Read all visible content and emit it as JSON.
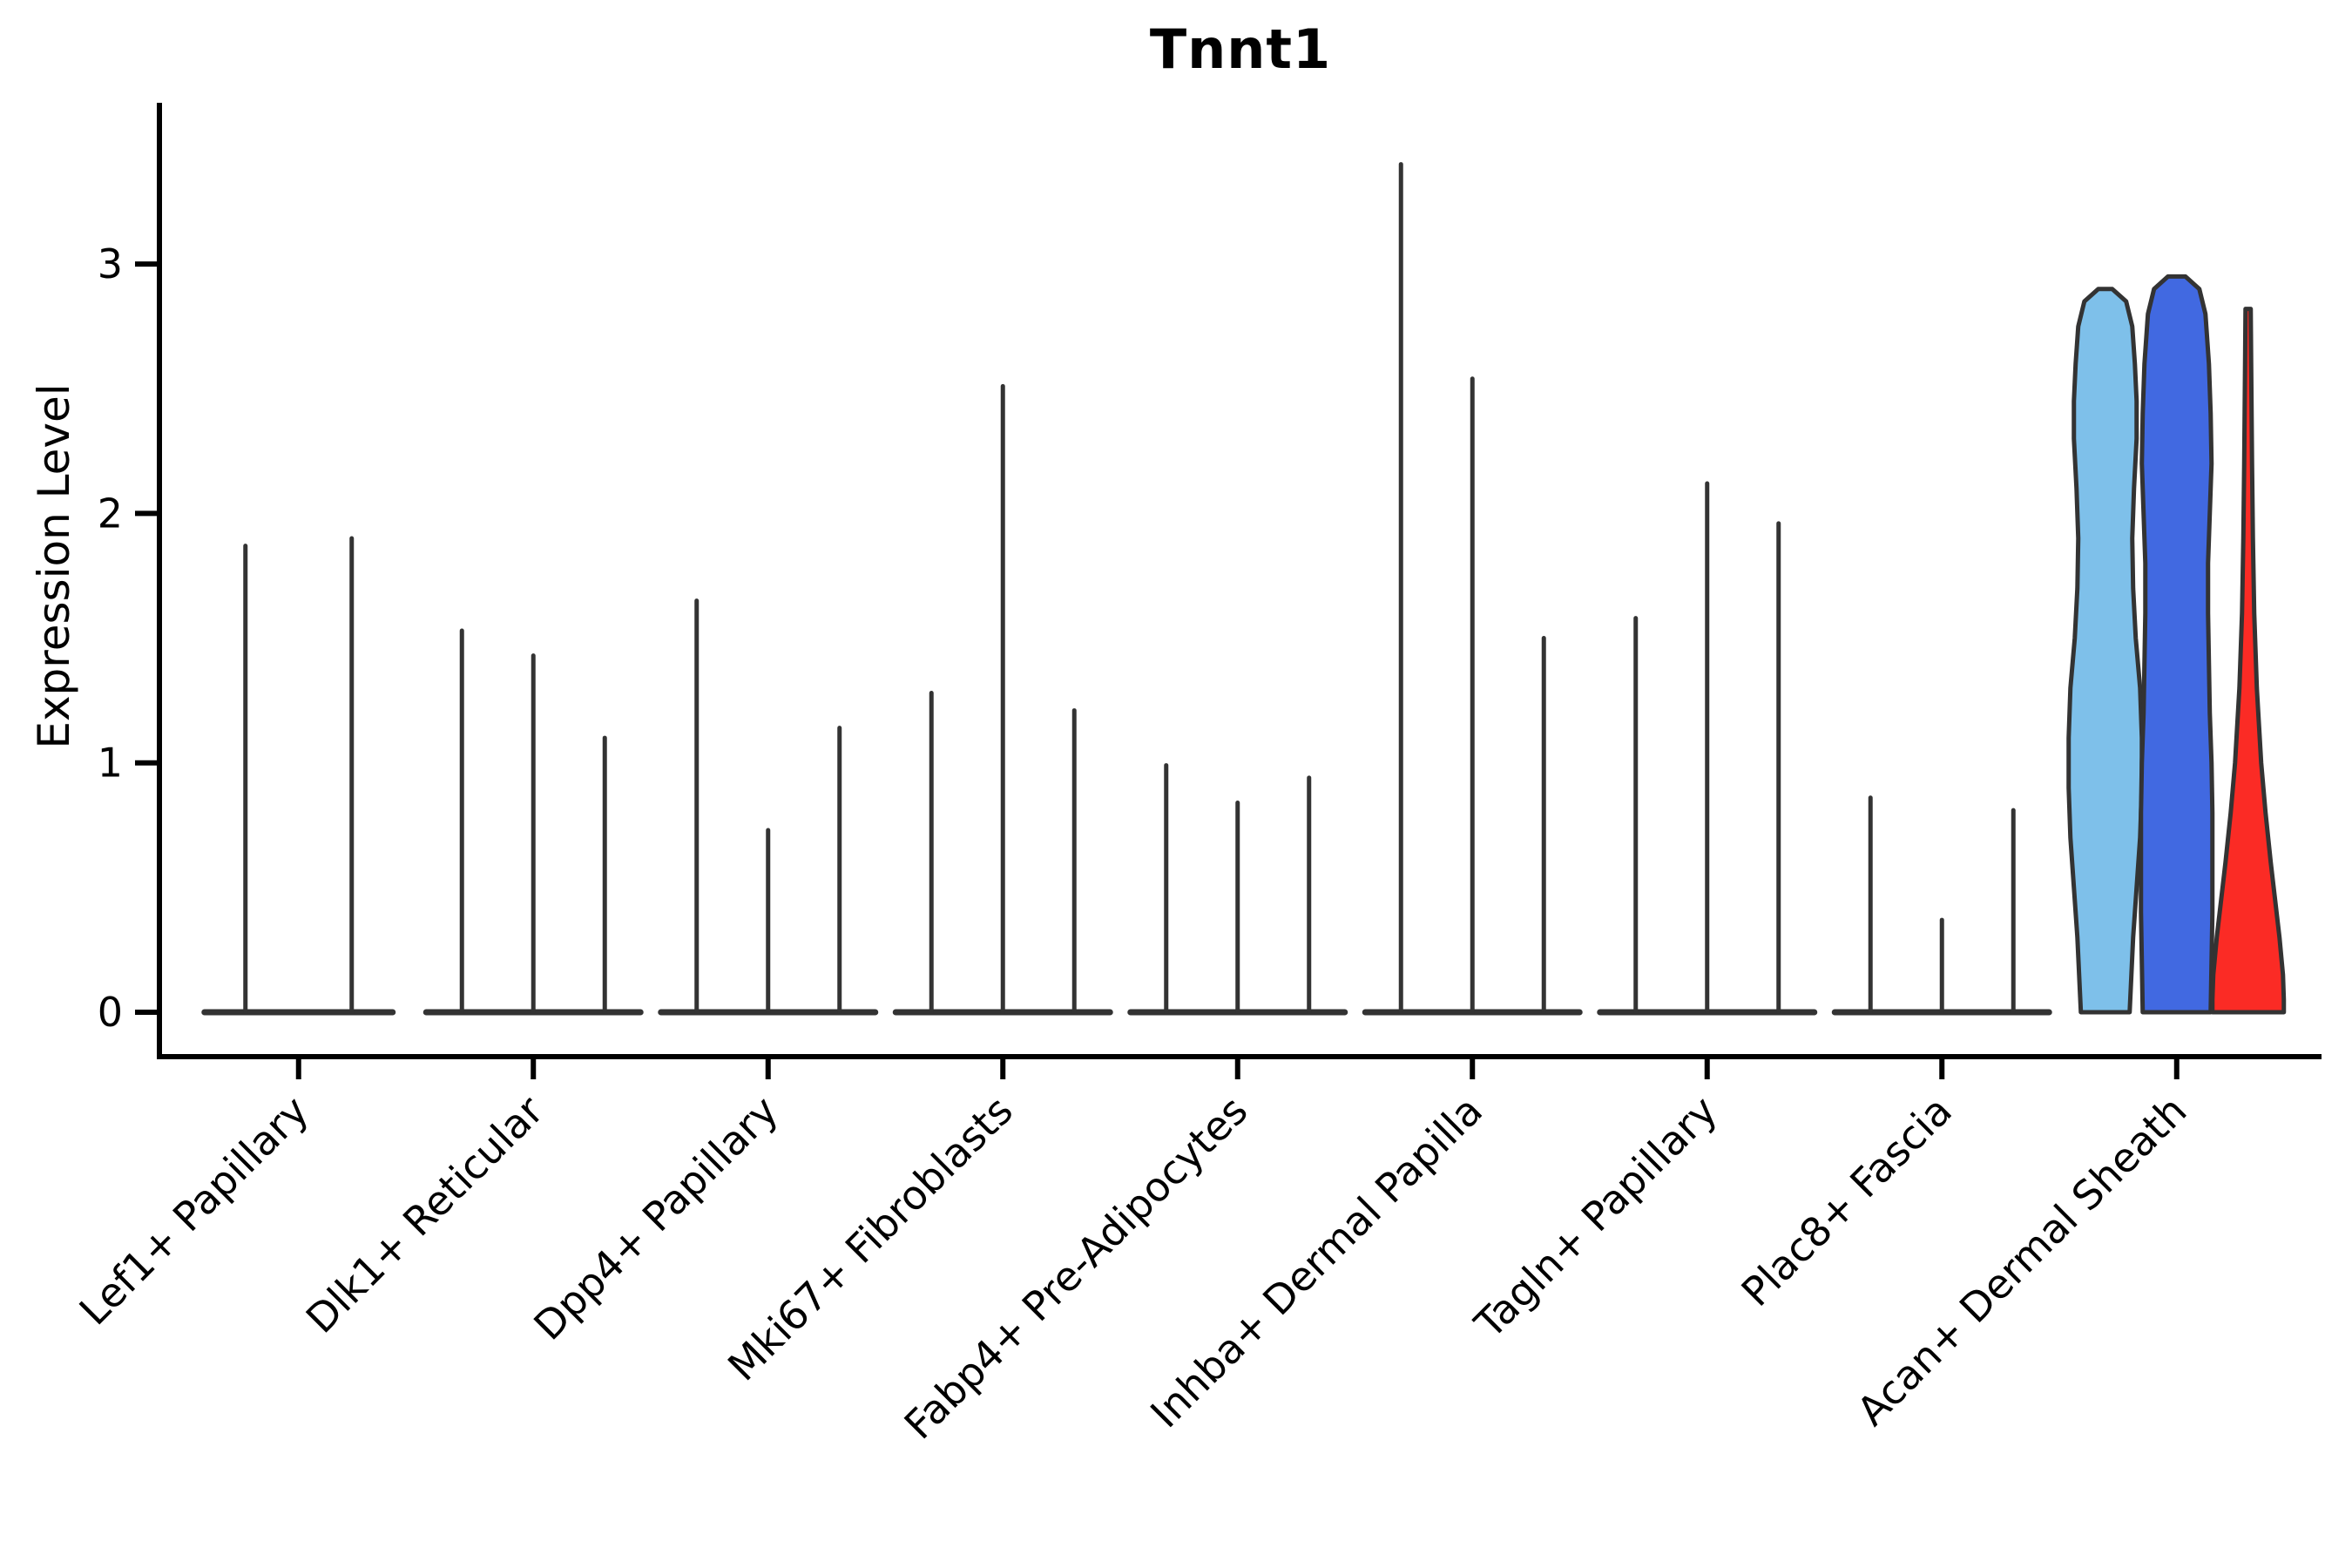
{
  "title": "Tnnt1",
  "y_axis": {
    "label": "Expression Level",
    "tick_labels": [
      "0",
      "1",
      "2",
      "3"
    ]
  },
  "colors": {
    "axis": "#000000",
    "spike": "#333333",
    "violin_outline": "#333333",
    "light_blue": "#7EC0EA",
    "blue": "#4169E1",
    "red": "#FB2B25",
    "background": "#ffffff"
  },
  "chart_data": {
    "type": "violin",
    "title": "Tnnt1",
    "xlabel": "",
    "ylabel": "Expression Level",
    "ylim": [
      0,
      3.65
    ],
    "yticks": [
      0,
      1,
      2,
      3
    ],
    "grid": false,
    "legend_position": "none",
    "categories": [
      "Lef1+ Papillary",
      "Dlk1+ Reticular",
      "Dpp4+ Papillary",
      "Mki67+ Fibroblasts",
      "Fabp4+ Pre-Adipocytes",
      "Inhba+ Dermal Papilla",
      "Tagln+ Papillary",
      "Plac8+ Fascia",
      "Acan+ Dermal Sheath"
    ],
    "groups": [
      {
        "category": "Lef1+ Papillary",
        "violins": [
          {
            "kind": "spike",
            "offset": -61,
            "max": 1.87
          },
          {
            "kind": "spike",
            "offset": 61,
            "max": 1.9
          }
        ]
      },
      {
        "category": "Dlk1+ Reticular",
        "violins": [
          {
            "kind": "spike",
            "offset": -82,
            "max": 1.53
          },
          {
            "kind": "spike",
            "offset": 0,
            "max": 1.43
          },
          {
            "kind": "spike",
            "offset": 82,
            "max": 1.1
          }
        ]
      },
      {
        "category": "Dpp4+ Papillary",
        "violins": [
          {
            "kind": "spike",
            "offset": -82,
            "max": 1.65
          },
          {
            "kind": "spike",
            "offset": 0,
            "max": 0.73
          },
          {
            "kind": "spike",
            "offset": 82,
            "max": 1.14
          }
        ]
      },
      {
        "category": "Mki67+ Fibroblasts",
        "violins": [
          {
            "kind": "spike",
            "offset": -82,
            "max": 1.28
          },
          {
            "kind": "spike",
            "offset": 0,
            "max": 2.51
          },
          {
            "kind": "spike",
            "offset": 82,
            "max": 1.21
          }
        ]
      },
      {
        "category": "Fabp4+ Pre-Adipocytes",
        "violins": [
          {
            "kind": "spike",
            "offset": -82,
            "max": 0.99
          },
          {
            "kind": "spike",
            "offset": 0,
            "max": 0.84
          },
          {
            "kind": "spike",
            "offset": 82,
            "max": 0.94
          }
        ]
      },
      {
        "category": "Inhba+ Dermal Papilla",
        "violins": [
          {
            "kind": "spike",
            "offset": -82,
            "max": 3.4
          },
          {
            "kind": "spike",
            "offset": 0,
            "max": 2.54
          },
          {
            "kind": "spike",
            "offset": 82,
            "max": 1.5
          }
        ]
      },
      {
        "category": "Tagln+ Papillary",
        "violins": [
          {
            "kind": "spike",
            "offset": -82,
            "max": 1.58
          },
          {
            "kind": "spike",
            "offset": 0,
            "max": 2.12
          },
          {
            "kind": "spike",
            "offset": 82,
            "max": 1.96
          }
        ]
      },
      {
        "category": "Plac8+ Fascia",
        "violins": [
          {
            "kind": "spike",
            "offset": -82,
            "max": 0.86
          },
          {
            "kind": "spike",
            "offset": 0,
            "max": 0.37
          },
          {
            "kind": "spike",
            "offset": 82,
            "max": 0.81
          }
        ]
      },
      {
        "category": "Acan+ Dermal Sheath",
        "violins": [
          {
            "kind": "violin",
            "offset": -82,
            "max": 2.9,
            "color": "light_blue",
            "profile": [
              [
                2.9,
                8
              ],
              [
                2.85,
                24
              ],
              [
                2.75,
                31
              ],
              [
                2.6,
                34
              ],
              [
                2.45,
                36
              ],
              [
                2.3,
                36
              ],
              [
                2.1,
                33
              ],
              [
                1.9,
                31
              ],
              [
                1.7,
                32
              ],
              [
                1.5,
                35
              ],
              [
                1.3,
                40
              ],
              [
                1.1,
                42
              ],
              [
                0.9,
                42
              ],
              [
                0.7,
                40
              ],
              [
                0.5,
                36
              ],
              [
                0.3,
                32
              ],
              [
                0.15,
                30
              ],
              [
                0.0,
                28
              ]
            ]
          },
          {
            "kind": "violin",
            "offset": 0,
            "max": 2.95,
            "color": "blue",
            "profile": [
              [
                2.95,
                10
              ],
              [
                2.9,
                26
              ],
              [
                2.8,
                33
              ],
              [
                2.6,
                37
              ],
              [
                2.4,
                39
              ],
              [
                2.2,
                40
              ],
              [
                2.0,
                38
              ],
              [
                1.8,
                36
              ],
              [
                1.6,
                36
              ],
              [
                1.4,
                37
              ],
              [
                1.2,
                38
              ],
              [
                1.0,
                40
              ],
              [
                0.8,
                41
              ],
              [
                0.6,
                41
              ],
              [
                0.4,
                41
              ],
              [
                0.2,
                40
              ],
              [
                0.0,
                39
              ]
            ]
          },
          {
            "kind": "violin",
            "offset": 82,
            "max": 2.82,
            "color": "red",
            "profile": [
              [
                2.82,
                3
              ],
              [
                2.6,
                3.5
              ],
              [
                2.2,
                4.5
              ],
              [
                1.9,
                5.5
              ],
              [
                1.6,
                7
              ],
              [
                1.3,
                10
              ],
              [
                1.0,
                15
              ],
              [
                0.8,
                20
              ],
              [
                0.6,
                26
              ],
              [
                0.45,
                31
              ],
              [
                0.3,
                36
              ],
              [
                0.15,
                40
              ],
              [
                0.05,
                41
              ],
              [
                0.0,
                41
              ]
            ]
          }
        ]
      }
    ]
  }
}
